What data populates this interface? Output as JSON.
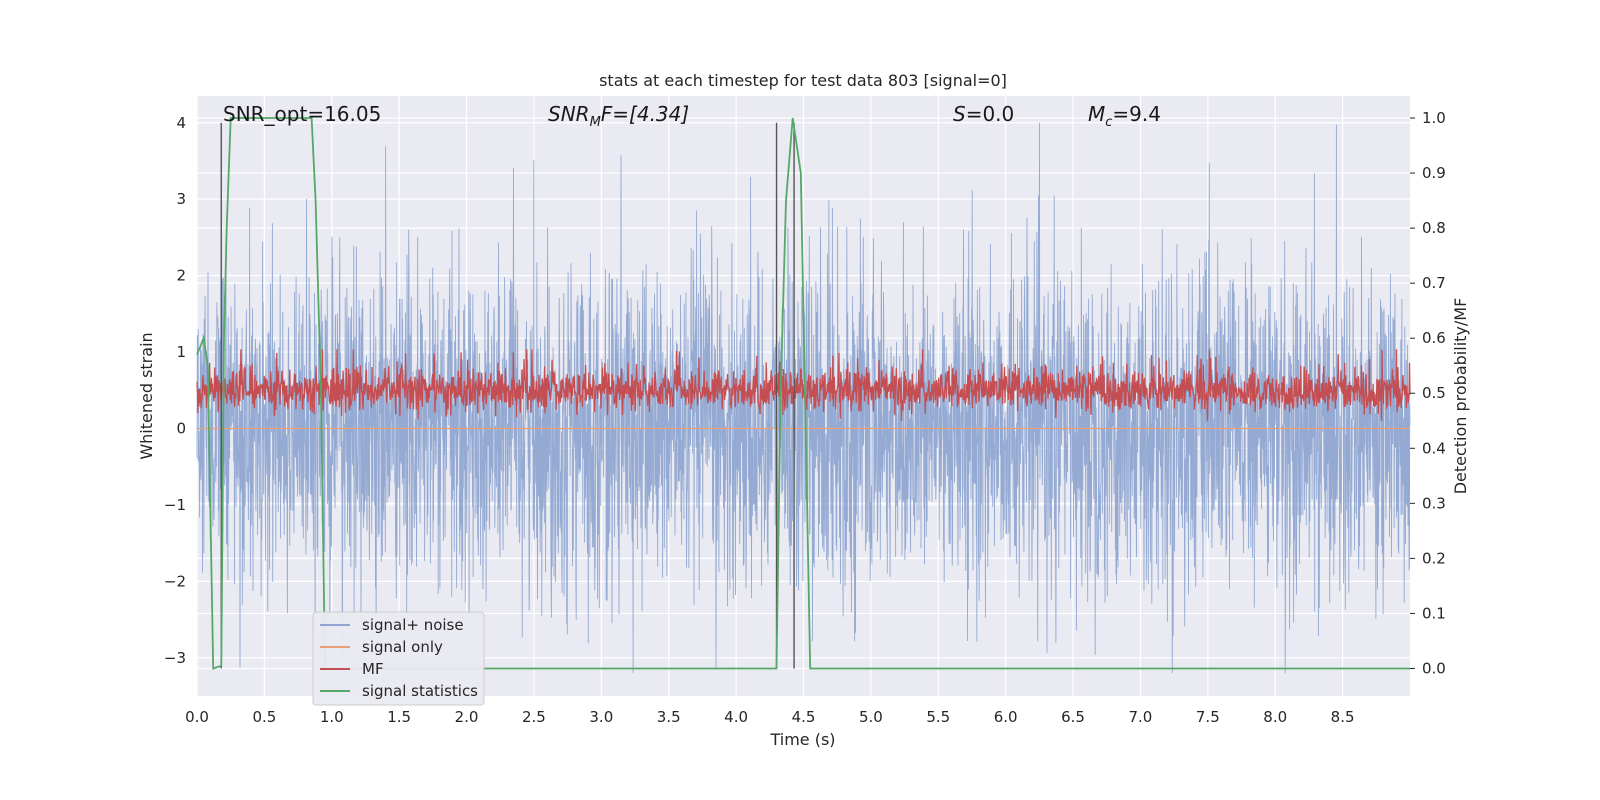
{
  "chart_data": {
    "type": "line",
    "title": "stats at each timestep for test data 803 [signal=0]",
    "xlabel": "Time (s)",
    "ylabel_left": "Whitened strain",
    "ylabel_right": "Detection probability/MF",
    "xlim": [
      0,
      9.0
    ],
    "ylim_left": [
      -3.5,
      4.35
    ],
    "ylim_right": [
      -0.05,
      1.04
    ],
    "x_ticks": [
      "0.0",
      "0.5",
      "1.0",
      "1.5",
      "2.0",
      "2.5",
      "3.0",
      "3.5",
      "4.0",
      "4.5",
      "5.0",
      "5.5",
      "6.0",
      "6.5",
      "7.0",
      "7.5",
      "8.0",
      "8.5"
    ],
    "y_left_ticks": [
      "−3",
      "−2",
      "−1",
      "0",
      "1",
      "2",
      "3",
      "4"
    ],
    "y_right_ticks": [
      "0.0",
      "0.1",
      "0.2",
      "0.3",
      "0.4",
      "0.5",
      "0.6",
      "0.7",
      "0.8",
      "0.9",
      "1.0"
    ],
    "grid": true,
    "legend_position": "lower-left",
    "annotations": {
      "snr_opt": "SNR_opt=16.05",
      "snr_mf_base": "SNR",
      "snr_mf_sub": "M",
      "snr_mf_rest": "F=[4.34]",
      "s_sym": "S",
      "s_val": "=0.0",
      "mc_base": "M",
      "mc_sub": "c",
      "mc_val": "=9.4"
    },
    "series": [
      {
        "name": "signal+ noise",
        "color": "#8fa6d1",
        "axis": "left",
        "kind": "noise",
        "approx_range": [
          -3.2,
          4.0
        ]
      },
      {
        "name": "signal only",
        "color": "#e8a07a",
        "axis": "left",
        "kind": "flat",
        "value": 0.0
      },
      {
        "name": "MF",
        "color": "#c44e52",
        "axis": "right",
        "kind": "noise",
        "approx_range": [
          0.45,
          0.58
        ]
      },
      {
        "name": "signal statistics",
        "color": "#55a868",
        "axis": "right",
        "kind": "line",
        "x": [
          0.0,
          0.05,
          0.08,
          0.12,
          0.18,
          0.2,
          0.22,
          0.25,
          0.85,
          0.88,
          0.92,
          0.95,
          4.3,
          4.33,
          4.37,
          4.42,
          4.48,
          4.55,
          4.6,
          9.0
        ],
        "y": [
          0.57,
          0.6,
          0.55,
          0.0,
          0.005,
          0.6,
          0.8,
          1.0,
          1.0,
          0.85,
          0.5,
          0.0,
          0.0,
          0.5,
          0.85,
          1.0,
          0.9,
          0.0,
          0.0,
          0.0
        ]
      }
    ],
    "vertical_lines": [
      0.18,
      4.3,
      4.43
    ]
  }
}
